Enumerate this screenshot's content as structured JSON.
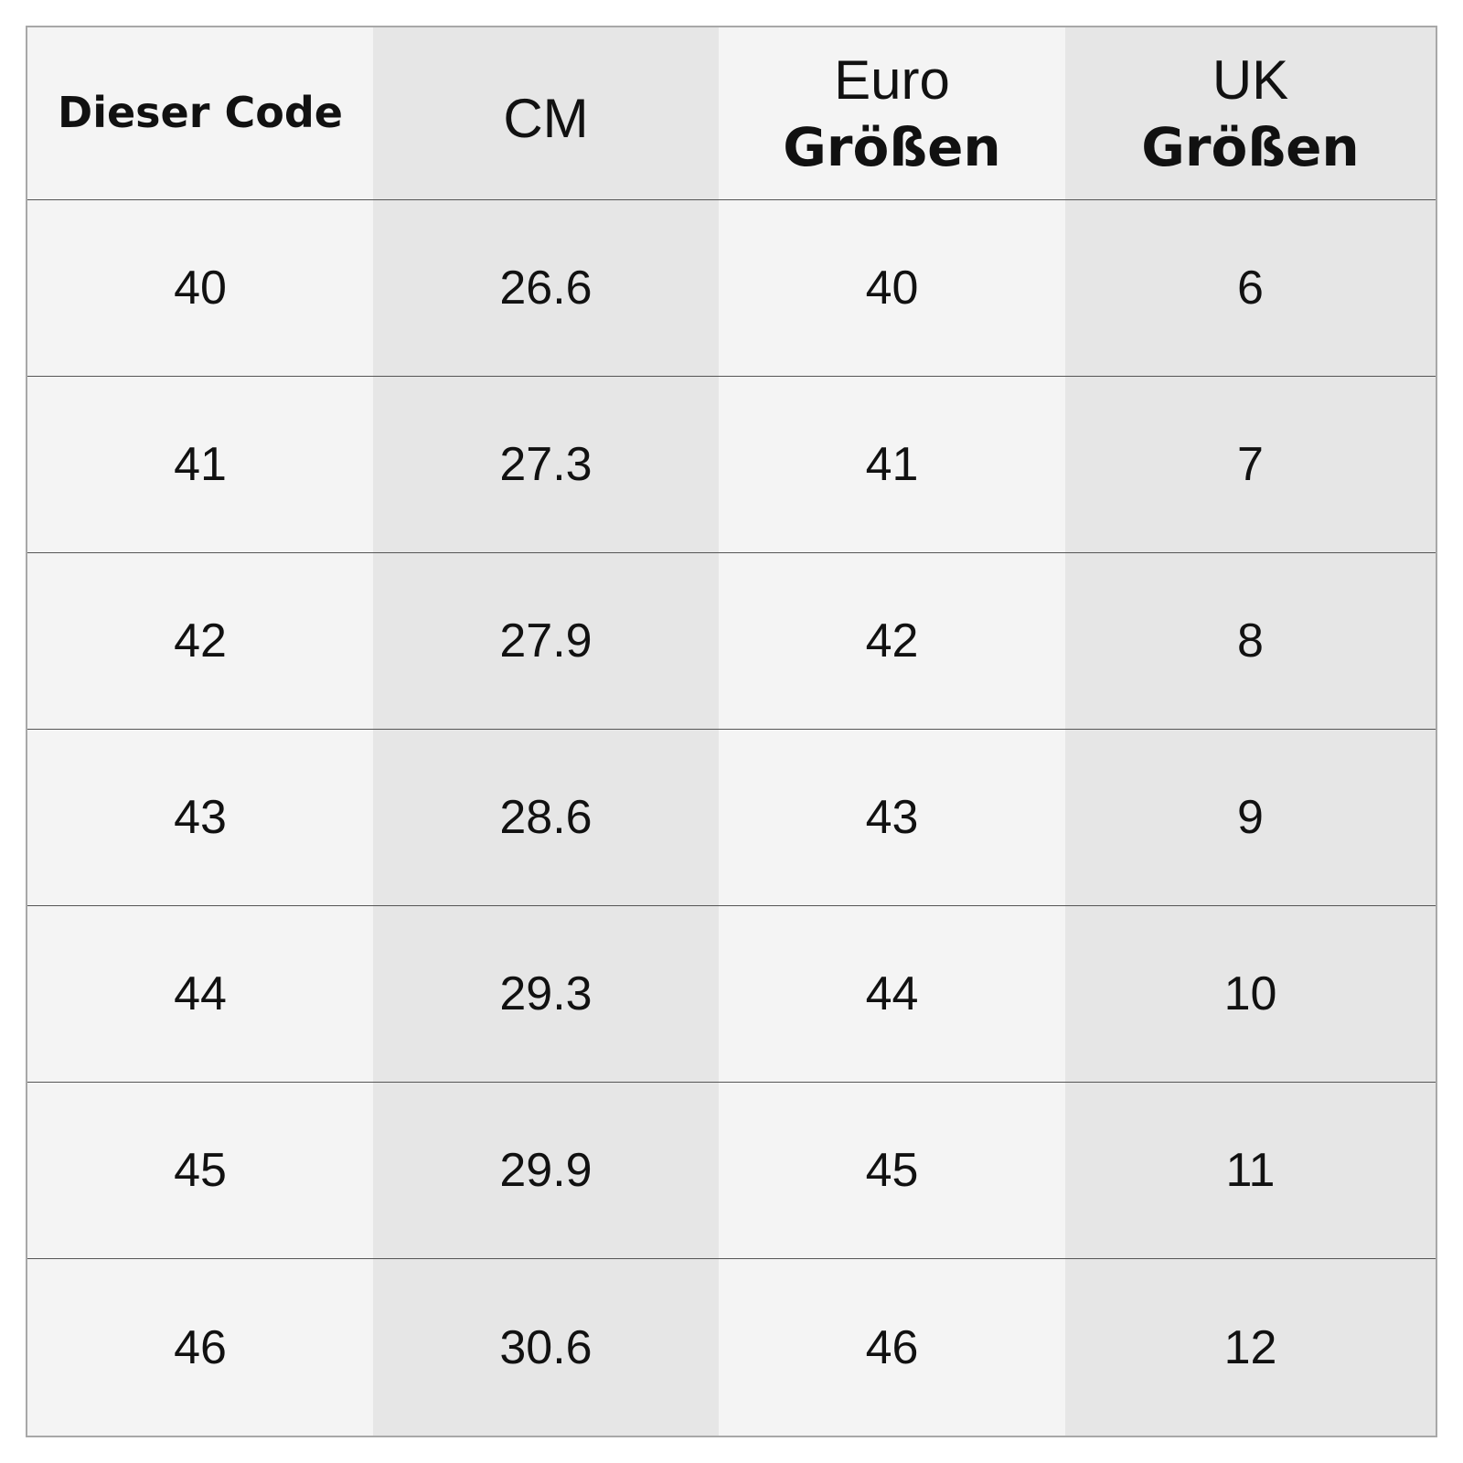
{
  "table": {
    "headers": {
      "code": "Dieser Code",
      "cm": "CM",
      "euro_line1": "Euro",
      "euro_line2": "Größen",
      "uk_line1": "UK",
      "uk_line2": "Größen"
    },
    "rows": [
      {
        "code": "40",
        "cm": "26.6",
        "euro": "40",
        "uk": "6"
      },
      {
        "code": "41",
        "cm": "27.3",
        "euro": "41",
        "uk": "7"
      },
      {
        "code": "42",
        "cm": "27.9",
        "euro": "42",
        "uk": "8"
      },
      {
        "code": "43",
        "cm": "28.6",
        "euro": "43",
        "uk": "9"
      },
      {
        "code": "44",
        "cm": "29.3",
        "euro": "44",
        "uk": "10"
      },
      {
        "code": "45",
        "cm": "29.9",
        "euro": "45",
        "uk": "11"
      },
      {
        "code": "46",
        "cm": "30.6",
        "euro": "46",
        "uk": "12"
      }
    ]
  }
}
